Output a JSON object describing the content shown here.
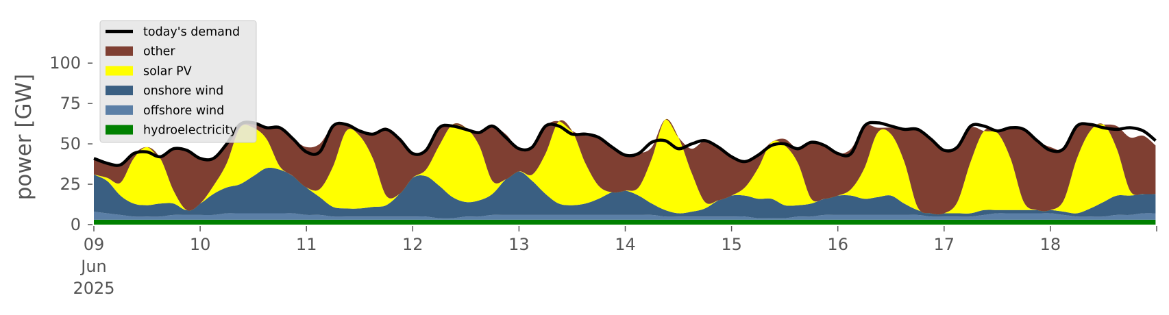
{
  "chart_data": {
    "type": "area",
    "ylabel": "power [GW]",
    "ylim": [
      0,
      120
    ],
    "xlim": [
      0,
      10
    ],
    "grid": false,
    "legend_position": "top-left",
    "yticks": [
      0,
      25,
      50,
      75,
      100
    ],
    "xtick_labels": [
      {
        "x": 0,
        "lines": [
          "09",
          "Jun",
          "2025"
        ]
      },
      {
        "x": 1,
        "lines": [
          "10"
        ]
      },
      {
        "x": 2,
        "lines": [
          "11"
        ]
      },
      {
        "x": 3,
        "lines": [
          "12"
        ]
      },
      {
        "x": 4,
        "lines": [
          "13"
        ]
      },
      {
        "x": 5,
        "lines": [
          "14"
        ]
      },
      {
        "x": 6,
        "lines": [
          "15"
        ]
      },
      {
        "x": 7,
        "lines": [
          "16"
        ]
      },
      {
        "x": 8,
        "lines": [
          "17"
        ]
      },
      {
        "x": 9,
        "lines": [
          "18"
        ]
      }
    ],
    "x_unit": "days since 09 Jun 2025 00:00",
    "x": [
      0.0,
      0.125,
      0.25,
      0.375,
      0.5,
      0.625,
      0.75,
      0.875,
      1.0,
      1.125,
      1.25,
      1.375,
      1.5,
      1.625,
      1.75,
      1.875,
      2.0,
      2.125,
      2.25,
      2.375,
      2.5,
      2.625,
      2.75,
      2.875,
      3.0,
      3.125,
      3.25,
      3.375,
      3.5,
      3.625,
      3.75,
      3.875,
      4.0,
      4.125,
      4.25,
      4.375,
      4.5,
      4.625,
      4.75,
      4.875,
      5.0,
      5.125,
      5.25,
      5.375,
      5.5,
      5.625,
      5.75,
      5.875,
      6.0,
      6.125,
      6.25,
      6.375,
      6.5,
      6.625,
      6.75,
      6.875,
      7.0,
      7.125,
      7.25,
      7.375,
      7.5,
      7.625,
      7.75,
      7.875,
      8.0,
      8.125,
      8.25,
      8.375,
      8.5,
      8.625,
      8.75,
      8.875,
      9.0,
      9.125,
      9.25,
      9.375,
      9.5,
      9.625,
      9.75,
      9.875,
      9.99
    ],
    "demand": {
      "name": "today's demand",
      "color": "#000000",
      "values": [
        41,
        38,
        37,
        44,
        45,
        42,
        47,
        46,
        41,
        41,
        50,
        62,
        63,
        60,
        60,
        53,
        45,
        45,
        61,
        62,
        58,
        56,
        59,
        53,
        44,
        46,
        60,
        61,
        59,
        57,
        61,
        54,
        47,
        48,
        61,
        61,
        56,
        56,
        54,
        48,
        43,
        44,
        51,
        52,
        47,
        50,
        52,
        48,
        42,
        39,
        43,
        49,
        50,
        47,
        51,
        49,
        44,
        44,
        61,
        63,
        61,
        59,
        59,
        53,
        46,
        48,
        61,
        61,
        58,
        60,
        59,
        52,
        46,
        47,
        61,
        62,
        60,
        59,
        60,
        58,
        52
      ]
    },
    "series": [
      {
        "name": "hydroelectricity",
        "color": "#008000",
        "values": [
          3,
          3,
          3,
          3,
          3,
          3,
          3,
          3,
          3,
          3,
          3,
          3,
          3,
          3,
          3,
          3,
          3,
          3,
          3,
          3,
          3,
          3,
          3,
          3,
          3,
          3,
          3,
          3,
          3,
          3,
          3,
          3,
          3,
          3,
          3,
          3,
          3,
          3,
          3,
          3,
          3,
          3,
          3,
          3,
          3,
          3,
          3,
          3,
          3,
          3,
          3,
          3,
          3,
          3,
          3,
          3,
          3,
          3,
          3,
          3,
          3,
          3,
          3,
          3,
          3,
          3,
          3,
          3,
          3,
          3,
          3,
          3,
          3,
          3,
          3,
          3,
          3,
          3,
          3,
          3,
          3
        ]
      },
      {
        "name": "offshore wind",
        "color": "#5b7fa6",
        "values": [
          5,
          4,
          3,
          2,
          2,
          2,
          3,
          3,
          3,
          3,
          4,
          4,
          4,
          4,
          4,
          4,
          3,
          3,
          2,
          2,
          2,
          2,
          2,
          2,
          2,
          2,
          1,
          1,
          2,
          2,
          3,
          3,
          3,
          3,
          3,
          3,
          3,
          3,
          3,
          3,
          3,
          3,
          3,
          2,
          2,
          2,
          2,
          2,
          2,
          2,
          1,
          1,
          1,
          2,
          2,
          3,
          3,
          3,
          3,
          3,
          3,
          3,
          3,
          2,
          2,
          2,
          2,
          3,
          4,
          4,
          4,
          4,
          4,
          3,
          2,
          2,
          2,
          3,
          3,
          4,
          4
        ]
      },
      {
        "name": "onshore wind",
        "color": "#3a5f82",
        "values": [
          23,
          20,
          12,
          8,
          7,
          8,
          7,
          3,
          7,
          13,
          16,
          18,
          23,
          28,
          27,
          23,
          17,
          11,
          6,
          5,
          5,
          6,
          7,
          14,
          24,
          25,
          20,
          13,
          9,
          10,
          13,
          22,
          27,
          21,
          13,
          7,
          6,
          7,
          10,
          14,
          15,
          12,
          7,
          4,
          2,
          3,
          5,
          10,
          13,
          13,
          12,
          12,
          8,
          7,
          8,
          10,
          12,
          12,
          10,
          11,
          12,
          7,
          3,
          2,
          2,
          2,
          2,
          3,
          2,
          2,
          2,
          2,
          2,
          2,
          2,
          5,
          9,
          12,
          12,
          12,
          12
        ]
      },
      {
        "name": "solar PV",
        "color": "#ffff00",
        "values": [
          0,
          2,
          8,
          28,
          36,
          28,
          8,
          0,
          0,
          5,
          15,
          35,
          30,
          18,
          2,
          0,
          0,
          5,
          25,
          48,
          45,
          30,
          6,
          0,
          0,
          4,
          25,
          45,
          46,
          34,
          8,
          0,
          0,
          4,
          25,
          51,
          46,
          25,
          8,
          0,
          0,
          5,
          28,
          56,
          47,
          24,
          4,
          0,
          0,
          5,
          19,
          35,
          37,
          26,
          3,
          0,
          0,
          4,
          19,
          40,
          38,
          26,
          2,
          0,
          0,
          7,
          32,
          49,
          48,
          32,
          5,
          0,
          0,
          7,
          34,
          48,
          48,
          29,
          3,
          0,
          0
        ]
      },
      {
        "name": "other",
        "color": "#7f3f32",
        "values": [
          10,
          9,
          11,
          3,
          0,
          1,
          26,
          37,
          28,
          17,
          12,
          2,
          3,
          7,
          24,
          23,
          25,
          28,
          25,
          4,
          3,
          15,
          42,
          34,
          15,
          12,
          11,
          0,
          0,
          8,
          34,
          28,
          14,
          17,
          17,
          0,
          0,
          17,
          30,
          28,
          22,
          21,
          7,
          0,
          0,
          15,
          38,
          33,
          24,
          16,
          8,
          0,
          4,
          9,
          35,
          33,
          26,
          25,
          26,
          3,
          4,
          20,
          48,
          45,
          39,
          34,
          21,
          0,
          1,
          19,
          45,
          43,
          39,
          32,
          20,
          4,
          0,
          14,
          33,
          36,
          30
        ]
      }
    ],
    "legend": [
      "today's demand",
      "other",
      "solar PV",
      "onshore wind",
      "offshore wind",
      "hydroelectricity"
    ]
  }
}
